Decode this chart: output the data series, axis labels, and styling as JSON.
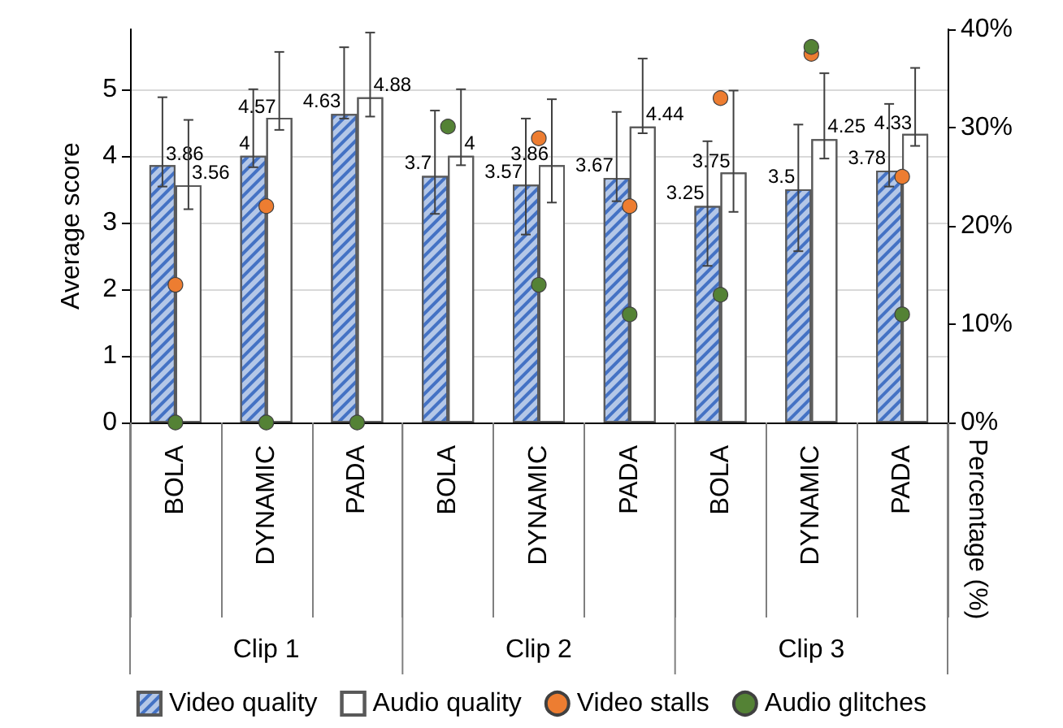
{
  "chart_data": {
    "type": "bar",
    "categories": [
      "BOLA",
      "DYNAMIC",
      "PADA",
      "BOLA",
      "DYNAMIC",
      "PADA",
      "BOLA",
      "DYNAMIC",
      "PADA"
    ],
    "ylabel": "Average score",
    "y2label": "Percentage (%)",
    "ylim": [
      0,
      5.9
    ],
    "yticks": [
      0,
      1,
      2,
      3,
      4,
      5
    ],
    "y2lim": [
      0,
      40
    ],
    "y2ticks": [
      {
        "value": 0,
        "label": "0%"
      },
      {
        "value": 10,
        "label": "10%"
      },
      {
        "value": 20,
        "label": "20%"
      },
      {
        "value": 30,
        "label": "30%"
      },
      {
        "value": 40,
        "label": "40%"
      }
    ],
    "series": [
      {
        "name": "Video quality",
        "color": "#b4c7e7",
        "values": [
          3.86,
          4,
          4.63,
          3.7,
          3.57,
          3.67,
          3.25,
          3.5,
          3.78
        ],
        "value_labels": [
          "3.86",
          "4",
          "4.63",
          "3.7",
          "3.57",
          "3.67",
          "3.25",
          "3.5",
          "3.78"
        ],
        "errors": [
          [
            3.54,
            4.88
          ],
          [
            3.83,
            5.0
          ],
          [
            4.56,
            5.63
          ],
          [
            3.13,
            4.68
          ],
          [
            2.82,
            4.56
          ],
          [
            3.32,
            4.66
          ],
          [
            2.35,
            4.22
          ],
          [
            2.57,
            4.47
          ],
          [
            3.54,
            4.78
          ]
        ]
      },
      {
        "name": "Audio quality",
        "color": "#ffffff",
        "values": [
          3.56,
          4.57,
          4.88,
          4,
          3.86,
          4.44,
          3.75,
          4.25,
          4.33
        ],
        "value_labels": [
          "3.56",
          "4.57",
          "4.88",
          "4",
          "3.86",
          "4.44",
          "3.75",
          "4.25",
          "4.33"
        ],
        "errors": [
          [
            3.2,
            4.54
          ],
          [
            4.39,
            5.56
          ],
          [
            4.59,
            5.85
          ],
          [
            3.86,
            5.0
          ],
          [
            3.3,
            4.85
          ],
          [
            4.34,
            5.46
          ],
          [
            3.16,
            4.98
          ],
          [
            3.96,
            5.24
          ],
          [
            4.15,
            5.32
          ]
        ]
      },
      {
        "name": "Video stalls",
        "type": "scatter",
        "axis": "y2",
        "color": "#ed7d31",
        "values": [
          14.0,
          22.0,
          null,
          null,
          28.9,
          22.0,
          33.0,
          37.5,
          25.0
        ]
      },
      {
        "name": "Audio glitches",
        "type": "scatter",
        "axis": "y2",
        "color": "#548235",
        "values": [
          0,
          0,
          0,
          30.1,
          14.0,
          11.0,
          13.0,
          38.2,
          11.0
        ]
      }
    ],
    "annotations": [
      "Clip 1",
      "Clip 2",
      "Clip 3"
    ],
    "grid": "y",
    "legend": "bottom",
    "marker": "circle"
  }
}
